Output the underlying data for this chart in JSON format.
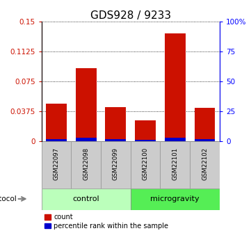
{
  "title": "GDS928 / 9233",
  "samples": [
    "GSM22097",
    "GSM22098",
    "GSM22099",
    "GSM22100",
    "GSM22101",
    "GSM22102"
  ],
  "count_values": [
    0.047,
    0.092,
    0.043,
    0.026,
    0.135,
    0.042
  ],
  "percentile_values": [
    0.003,
    0.004,
    0.003,
    0.002,
    0.004,
    0.003
  ],
  "ylim_left": [
    0,
    0.15
  ],
  "yticks_left": [
    0,
    0.0375,
    0.075,
    0.1125,
    0.15
  ],
  "ytick_labels_left": [
    "0",
    "0.0375",
    "0.075",
    "0.1125",
    "0.15"
  ],
  "ylim_right": [
    0,
    100
  ],
  "yticks_right": [
    0,
    25,
    50,
    75,
    100
  ],
  "ytick_labels_right": [
    "0",
    "25",
    "50",
    "75",
    "100%"
  ],
  "groups": [
    {
      "label": "control",
      "indices": [
        0,
        1,
        2
      ],
      "color": "#bbffbb"
    },
    {
      "label": "microgravity",
      "indices": [
        3,
        4,
        5
      ],
      "color": "#55ee55"
    }
  ],
  "bar_color_count": "#cc1100",
  "bar_color_percentile": "#0000cc",
  "bar_width": 0.7,
  "protocol_label": "protocol",
  "legend_count": "count",
  "legend_percentile": "percentile rank within the sample",
  "bg_plot": "#ffffff",
  "sample_box_color": "#cccccc",
  "title_fontsize": 11,
  "tick_fontsize": 7.5,
  "label_fontsize": 7.5
}
